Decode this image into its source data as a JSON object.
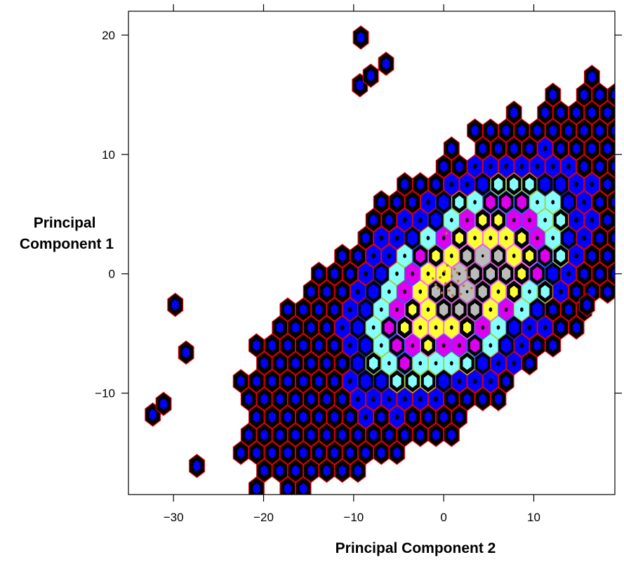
{
  "chart_data": {
    "type": "hexbin",
    "title": "",
    "xlabel": "Principal Component 2",
    "ylabel_lines": [
      "Principal",
      "Component 1"
    ],
    "xlim": [
      -35,
      19
    ],
    "ylim": [
      -18.5,
      22
    ],
    "x_ticks": [
      -30,
      -20,
      -10,
      0,
      10
    ],
    "x_tick_labels": [
      "−30",
      "−20",
      "−10",
      "0",
      "10"
    ],
    "y_ticks": [
      -10,
      0,
      10,
      20
    ],
    "y_tick_labels": [
      "−10",
      "0",
      "10",
      "20"
    ],
    "grid": false,
    "legend": "none",
    "hex_radius": 1.0,
    "density_model": {
      "center": [
        2.5,
        -0.7
      ],
      "axis_direction": [
        -0.86,
        -0.52
      ],
      "sigma_major": 9.2,
      "sigma_minor": 4.6,
      "kernel_power": 1.35,
      "outer_extent_major": 29.0,
      "outer_extent_minor": 10.5
    },
    "level_styles": [
      {
        "level": 1,
        "fill": "#000000",
        "stroke": "#e00000",
        "inner": "#0000ff",
        "inner_scale": 0.45
      },
      {
        "level": 2,
        "fill": "#0000ff",
        "stroke": "#e00000",
        "inner": "#000000",
        "inner_scale": 0.25
      },
      {
        "level": 3,
        "fill": "#000000",
        "stroke": "#1a1a8c",
        "inner": "#0000ff",
        "inner_scale": 0.65
      },
      {
        "level": 4,
        "fill": "#000000",
        "stroke": "#9bd34f",
        "inner": "#88ffff",
        "inner_scale": 0.55
      },
      {
        "level": 5,
        "fill": "#88ffff",
        "stroke": "#9bd34f",
        "inner": "#000000",
        "inner_scale": 0.2
      },
      {
        "level": 6,
        "fill": "#000000",
        "stroke": "#3355ff",
        "inner": "#dd00ee",
        "inner_scale": 0.6
      },
      {
        "level": 7,
        "fill": "#dd00ee",
        "stroke": "#3355ff",
        "inner": "#000000",
        "inner_scale": 0.2
      },
      {
        "level": 8,
        "fill": "#000000",
        "stroke": "#ff66ff",
        "inner": "#ffff33",
        "inner_scale": 0.5
      },
      {
        "level": 9,
        "fill": "#ffff33",
        "stroke": "#ff66ff",
        "inner": "#000000",
        "inner_scale": 0.2
      },
      {
        "level": 10,
        "fill": "#000000",
        "stroke": "#c060c0",
        "inner": "#bbbbbb",
        "inner_scale": 0.55
      },
      {
        "level": 11,
        "fill": "#bbbbbb",
        "stroke": "#c060c0",
        "inner": "#000000",
        "inner_scale": 0.15
      }
    ],
    "isolated_cells": [
      [
        -29.8,
        -2.6
      ],
      [
        -9.2,
        19.8
      ],
      [
        -6.4,
        17.6
      ],
      [
        15.9,
        -2.6
      ],
      [
        -27.4,
        -16.1
      ],
      [
        -32.3,
        -11.8
      ],
      [
        -31.1,
        -10.9
      ],
      [
        -28.6,
        -6.6
      ],
      [
        -9.3,
        15.8
      ],
      [
        -8.1,
        16.6
      ]
    ],
    "center_points": [
      [
        -0.4,
        -0.3
      ],
      [
        0.2,
        -0.8
      ],
      [
        0.9,
        -0.2
      ],
      [
        1.6,
        -0.6
      ],
      [
        -0.9,
        -0.9
      ],
      [
        0.6,
        -1.4
      ],
      [
        2.2,
        -1.0
      ],
      [
        1.2,
        0.4
      ],
      [
        -0.2,
        -1.6
      ],
      [
        2.8,
        -0.3
      ],
      [
        0.1,
        0.2
      ],
      [
        1.9,
        -1.7
      ],
      [
        -1.2,
        -0.4
      ],
      [
        0.8,
        -0.9
      ],
      [
        1.5,
        0.1
      ],
      [
        3.1,
        -1.2
      ],
      [
        0.4,
        0.7
      ],
      [
        -0.6,
        -1.2
      ],
      [
        2.5,
        0.3
      ],
      [
        1.0,
        -1.8
      ],
      [
        0.3,
        3.4
      ]
    ],
    "center_point_color": "#b8742a"
  }
}
